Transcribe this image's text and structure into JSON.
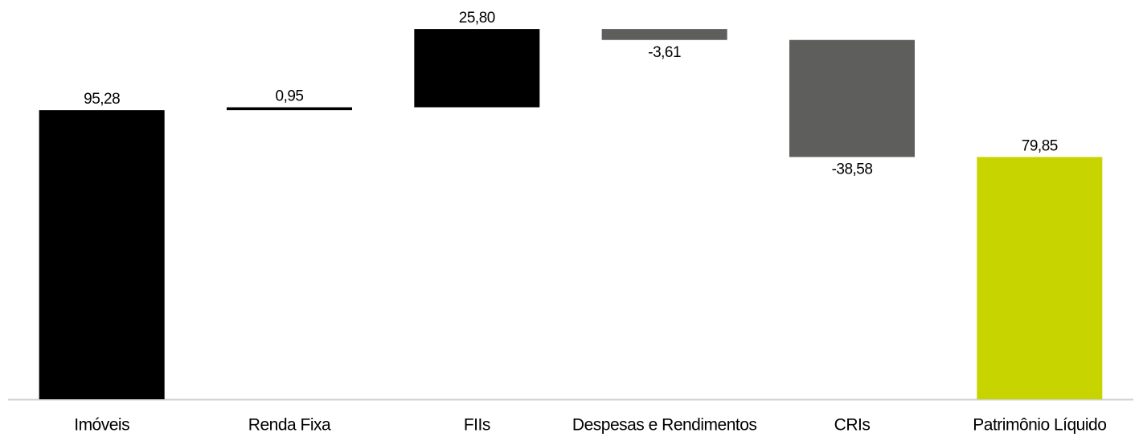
{
  "chart_data": {
    "type": "waterfall",
    "categories": [
      "Imóveis",
      "Renda Fixa",
      "FIIs",
      "Despesas e Rendimentos",
      "CRIs",
      "Patrimônio Líquido"
    ],
    "values": [
      95.28,
      0.95,
      25.8,
      -3.61,
      -38.58,
      79.85
    ],
    "value_labels": [
      "95,28",
      "0,95",
      "25,80",
      "-3,61",
      "-38,58",
      "79,85"
    ],
    "totals": [
      false,
      false,
      false,
      false,
      false,
      true
    ],
    "colors": {
      "increase": "#000000",
      "decrease": "#5e5e5c",
      "total": "#c8d400"
    },
    "ylim": [
      0,
      130
    ]
  }
}
